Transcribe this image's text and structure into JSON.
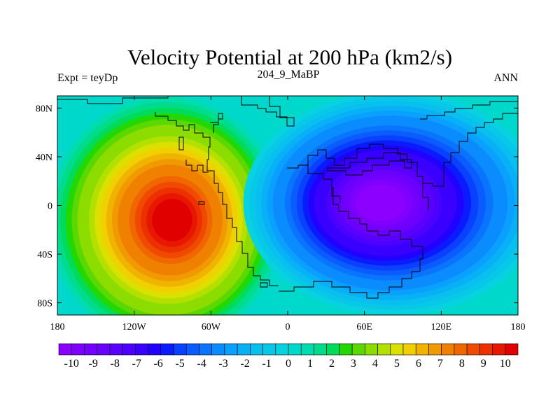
{
  "chart_data": {
    "type": "heatmap",
    "title": "Velocity Potential at 200 hPa (km2/s)",
    "subtitle_left": "Expt = teyDp",
    "subtitle_center": "204_9_MaBP",
    "subtitle_right": "ANN",
    "x_range": [
      -180,
      180
    ],
    "y_range": [
      -90,
      90
    ],
    "x_ticks": [
      {
        "value": -180,
        "label": "180"
      },
      {
        "value": -120,
        "label": "120W"
      },
      {
        "value": -60,
        "label": "60W"
      },
      {
        "value": 0,
        "label": "0"
      },
      {
        "value": 60,
        "label": "60E"
      },
      {
        "value": 120,
        "label": "120E"
      },
      {
        "value": 180,
        "label": "180"
      }
    ],
    "y_ticks": [
      {
        "value": 80,
        "label": "80N"
      },
      {
        "value": 40,
        "label": "40N"
      },
      {
        "value": 0,
        "label": "0"
      },
      {
        "value": -40,
        "label": "40S"
      },
      {
        "value": -80,
        "label": "80S"
      }
    ],
    "colorbar": {
      "min": -10.5,
      "max": 10.5,
      "step": 0.5,
      "labels": [
        "-10",
        "-9",
        "-8",
        "-7",
        "-6",
        "-5",
        "-4",
        "-3",
        "-2",
        "-1",
        "0",
        "1",
        "2",
        "3",
        "4",
        "5",
        "6",
        "7",
        "8",
        "9",
        "10"
      ],
      "colors": [
        "#8b00ff",
        "#7f00ff",
        "#7300ff",
        "#6a00ff",
        "#5a00ff",
        "#4c00ff",
        "#3a00ff",
        "#2200ff",
        "#0a1cff",
        "#0a40ff",
        "#0a5cff",
        "#0a74ff",
        "#0a8cff",
        "#0aa0ff",
        "#08b0f5",
        "#08bff0",
        "#08c8e8",
        "#08d2e0",
        "#00d8cc",
        "#00dcb0",
        "#00dc8c",
        "#00dc5a",
        "#22d800",
        "#5ad800",
        "#8cdc00",
        "#b4e000",
        "#dce000",
        "#f0d000",
        "#f0b400",
        "#f09a00",
        "#f08000",
        "#f06600",
        "#f04a00",
        "#ec3000",
        "#e81800",
        "#e00000"
      ]
    },
    "field_centers": [
      {
        "name": "maximum",
        "lon": -90,
        "lat": -12,
        "value": 10.3
      },
      {
        "name": "minimum",
        "lon": 72,
        "lat": 2,
        "value": -10.2
      }
    ]
  }
}
